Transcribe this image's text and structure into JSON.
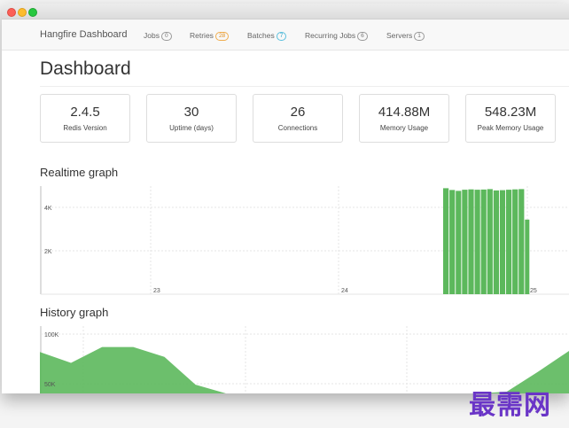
{
  "nav": {
    "brand": "Hangfire Dashboard",
    "items": [
      {
        "label": "Jobs",
        "count": "0"
      },
      {
        "label": "Retries",
        "count": "28"
      },
      {
        "label": "Batches",
        "count": "7"
      },
      {
        "label": "Recurring Jobs",
        "count": "6"
      },
      {
        "label": "Servers",
        "count": "1"
      }
    ]
  },
  "page": {
    "title": "Dashboard"
  },
  "metrics": [
    {
      "value": "2.4.5",
      "label": "Redis Version"
    },
    {
      "value": "30",
      "label": "Uptime (days)"
    },
    {
      "value": "26",
      "label": "Connections"
    },
    {
      "value": "414.88M",
      "label": "Memory Usage"
    },
    {
      "value": "548.23M",
      "label": "Peak Memory Usage"
    }
  ],
  "realtime": {
    "title": "Realtime graph",
    "y_ticks": [
      "4K",
      "2K"
    ],
    "x_ticks": [
      "23",
      "24",
      "25"
    ]
  },
  "history": {
    "title": "History graph",
    "y_ticks": [
      "100K",
      "50K"
    ]
  },
  "watermark": "最需网",
  "colors": {
    "accent_green": "#5cb85c",
    "badge_orange": "#f0ad4e",
    "badge_blue": "#5bc0de"
  },
  "chart_data": [
    {
      "type": "bar",
      "title": "Realtime graph",
      "ylim": [
        0,
        5000
      ],
      "x_ticks": [
        "23",
        "24",
        "25"
      ],
      "values": [
        4900,
        4820,
        4780,
        4830,
        4850,
        4830,
        4840,
        4860,
        4800,
        4810,
        4830,
        4850,
        4860,
        3450
      ]
    },
    {
      "type": "area",
      "title": "History graph",
      "y_ticks": [
        "100K",
        "50K"
      ],
      "values": [
        82000,
        71000,
        87000,
        87000,
        77000,
        49000,
        40000,
        40000,
        40000,
        40000,
        40000,
        40000,
        40000,
        40000,
        40000,
        42000,
        62000,
        83000
      ]
    }
  ]
}
